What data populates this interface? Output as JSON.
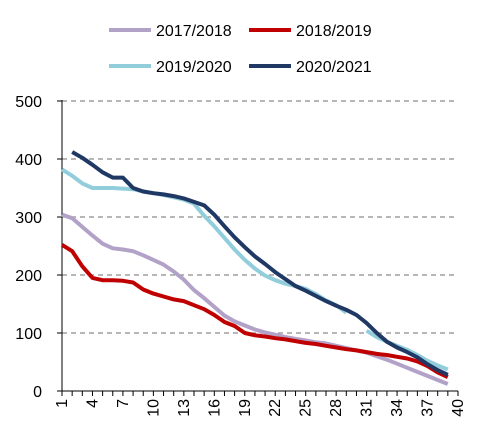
{
  "chart_data": {
    "type": "line",
    "title": "",
    "xlabel": "",
    "ylabel": "",
    "xlim": [
      1,
      40
    ],
    "ylim": [
      0,
      500
    ],
    "yticks": [
      0,
      100,
      200,
      300,
      400,
      500
    ],
    "xticks": [
      1,
      4,
      7,
      10,
      13,
      16,
      19,
      22,
      25,
      28,
      31,
      34,
      37,
      40
    ],
    "grid": "horizontal-dashed",
    "legend": "top",
    "series": [
      {
        "name": "2017/2018",
        "color": "#b3a2c7",
        "points": [
          [
            1,
            304
          ],
          [
            2,
            298
          ],
          [
            3,
            283
          ],
          [
            4,
            268
          ],
          [
            5,
            254
          ],
          [
            6,
            246
          ],
          [
            7,
            244
          ],
          [
            8,
            241
          ],
          [
            9,
            234
          ],
          [
            10,
            226
          ],
          [
            11,
            218
          ],
          [
            12,
            206
          ],
          [
            13,
            192
          ],
          [
            14,
            174
          ],
          [
            15,
            160
          ],
          [
            16,
            145
          ],
          [
            17,
            130
          ],
          [
            18,
            120
          ],
          [
            19,
            113
          ],
          [
            20,
            106
          ],
          [
            21,
            101
          ],
          [
            22,
            97
          ],
          [
            23,
            93
          ],
          [
            24,
            90
          ],
          [
            25,
            87
          ],
          [
            26,
            84
          ],
          [
            27,
            82
          ],
          [
            28,
            78
          ],
          [
            29,
            74
          ],
          [
            30,
            70
          ],
          [
            31,
            66
          ],
          [
            32,
            60
          ],
          [
            33,
            54
          ],
          [
            34,
            47
          ],
          [
            35,
            40
          ],
          [
            36,
            33
          ],
          [
            37,
            26
          ],
          [
            38,
            19
          ],
          [
            39,
            12
          ]
        ]
      },
      {
        "name": "2018/2019",
        "color": "#c00000",
        "points": [
          [
            1,
            252
          ],
          [
            2,
            241
          ],
          [
            3,
            215
          ],
          [
            4,
            195
          ],
          [
            5,
            191
          ],
          [
            6,
            191
          ],
          [
            7,
            190
          ],
          [
            8,
            187
          ],
          [
            9,
            175
          ],
          [
            10,
            168
          ],
          [
            11,
            163
          ],
          [
            12,
            158
          ],
          [
            13,
            155
          ],
          [
            14,
            148
          ],
          [
            15,
            141
          ],
          [
            16,
            131
          ],
          [
            17,
            119
          ],
          [
            18,
            112
          ],
          [
            19,
            100
          ],
          [
            20,
            96
          ],
          [
            21,
            94
          ],
          [
            22,
            91
          ],
          [
            23,
            89
          ],
          [
            24,
            86
          ],
          [
            25,
            83
          ],
          [
            26,
            81
          ],
          [
            27,
            78
          ],
          [
            28,
            75
          ],
          [
            29,
            72
          ],
          [
            30,
            70
          ],
          [
            31,
            67
          ],
          [
            32,
            64
          ],
          [
            33,
            62
          ],
          [
            34,
            59
          ],
          [
            35,
            56
          ],
          [
            36,
            51
          ],
          [
            37,
            43
          ],
          [
            38,
            32
          ],
          [
            39,
            24
          ]
        ]
      },
      {
        "name": "2019/2020",
        "color": "#92cddc",
        "points": [
          [
            1,
            382
          ],
          [
            2,
            371
          ],
          [
            3,
            358
          ],
          [
            4,
            350
          ],
          [
            5,
            350
          ],
          [
            6,
            350
          ],
          [
            7,
            349
          ],
          [
            8,
            348
          ],
          [
            9,
            344
          ],
          [
            10,
            341
          ],
          [
            11,
            338
          ],
          [
            12,
            334
          ],
          [
            13,
            330
          ],
          [
            14,
            323
          ],
          [
            15,
            302
          ],
          [
            16,
            284
          ],
          [
            17,
            264
          ],
          [
            18,
            244
          ],
          [
            19,
            226
          ],
          [
            20,
            211
          ],
          [
            21,
            199
          ],
          [
            22,
            191
          ],
          [
            23,
            185
          ],
          [
            24,
            181
          ],
          [
            25,
            176
          ],
          [
            26,
            167
          ],
          [
            27,
            156
          ],
          [
            28,
            148
          ],
          [
            29,
            135
          ],
          [
            30,
            null
          ],
          [
            31,
            104
          ],
          [
            32,
            93
          ],
          [
            33,
            85
          ],
          [
            34,
            78
          ],
          [
            35,
            71
          ],
          [
            36,
            62
          ],
          [
            37,
            52
          ],
          [
            38,
            44
          ],
          [
            39,
            37
          ]
        ]
      },
      {
        "name": "2020/2021",
        "color": "#1f3864",
        "points": [
          [
            2,
            412
          ],
          [
            3,
            402
          ],
          [
            4,
            390
          ],
          [
            5,
            377
          ],
          [
            6,
            368
          ],
          [
            7,
            368
          ],
          [
            8,
            350
          ],
          [
            9,
            344
          ],
          [
            10,
            341
          ],
          [
            11,
            339
          ],
          [
            12,
            336
          ],
          [
            13,
            332
          ],
          [
            14,
            326
          ],
          [
            15,
            320
          ],
          [
            16,
            304
          ],
          [
            17,
            284
          ],
          [
            18,
            265
          ],
          [
            19,
            248
          ],
          [
            20,
            232
          ],
          [
            21,
            219
          ],
          [
            22,
            205
          ],
          [
            23,
            193
          ],
          [
            24,
            181
          ],
          [
            25,
            173
          ],
          [
            26,
            164
          ],
          [
            27,
            155
          ],
          [
            28,
            147
          ],
          [
            29,
            140
          ],
          [
            30,
            131
          ],
          [
            31,
            117
          ],
          [
            32,
            100
          ],
          [
            33,
            85
          ],
          [
            34,
            75
          ],
          [
            35,
            67
          ],
          [
            36,
            58
          ],
          [
            37,
            46
          ],
          [
            38,
            36
          ],
          [
            39,
            28
          ]
        ]
      }
    ]
  }
}
